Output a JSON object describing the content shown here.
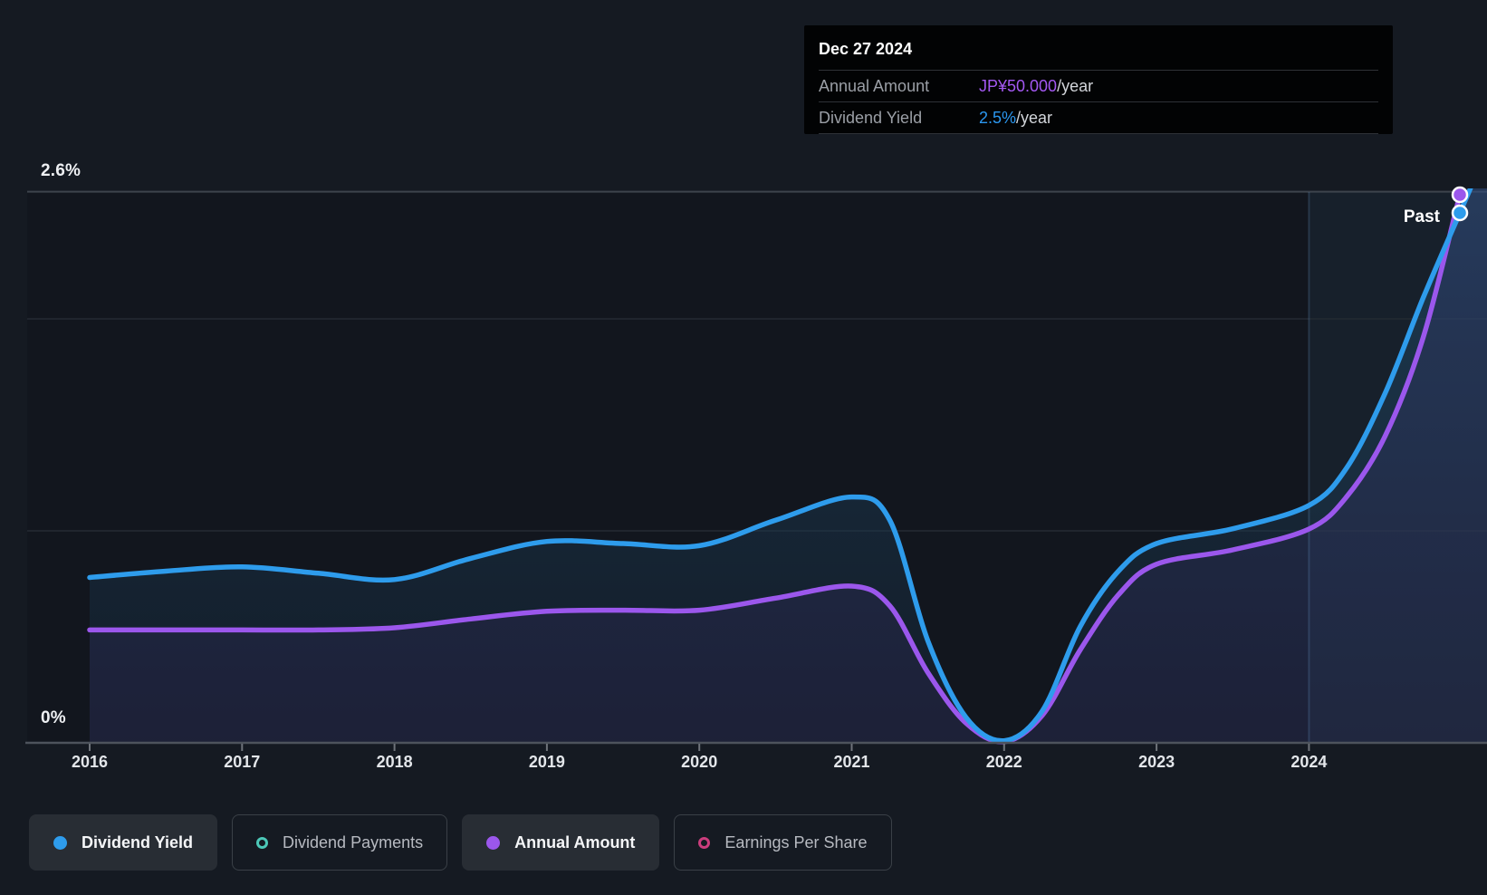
{
  "tooltip": {
    "date": "Dec 27 2024",
    "rows": [
      {
        "label": "Annual Amount",
        "value": "JP¥50.000",
        "suffix": "/year",
        "value_color": "#a358f2"
      },
      {
        "label": "Dividend Yield",
        "value": "2.5%",
        "suffix": "/year",
        "value_color": "#2b97f0"
      }
    ]
  },
  "axis": {
    "y_max_label": "2.6%",
    "y_min_label": "0%",
    "x_ticks": [
      "2016",
      "2017",
      "2018",
      "2019",
      "2020",
      "2021",
      "2022",
      "2023",
      "2024"
    ]
  },
  "annotations": {
    "past_label": "Past"
  },
  "legend": {
    "items": [
      {
        "label": "Dividend Yield",
        "color": "#2e9cec",
        "active": true,
        "marker": "filled"
      },
      {
        "label": "Dividend Payments",
        "color": "#4cc8b8",
        "active": false,
        "marker": "ring"
      },
      {
        "label": "Annual Amount",
        "color": "#9b57ec",
        "active": true,
        "marker": "filled"
      },
      {
        "label": "Earnings Per Share",
        "color": "#cb3d7d",
        "active": false,
        "marker": "ring"
      }
    ]
  },
  "chart_data": {
    "type": "line",
    "x_axis": {
      "range": [
        2016,
        2025
      ],
      "ticks": [
        2016,
        2017,
        2018,
        2019,
        2020,
        2021,
        2022,
        2023,
        2024
      ]
    },
    "y_axis": {
      "yield_range_pct": [
        0,
        2.6
      ],
      "gridlines_pct": [
        2.6,
        2.0,
        1.0
      ],
      "amount_range_jpy": [
        0,
        52
      ]
    },
    "series": [
      {
        "name": "Dividend Yield",
        "unit": "%",
        "color": "#2e9cec",
        "points": [
          [
            2016.0,
            0.78
          ],
          [
            2016.5,
            0.81
          ],
          [
            2017.0,
            0.83
          ],
          [
            2017.5,
            0.8
          ],
          [
            2018.0,
            0.77
          ],
          [
            2018.5,
            0.87
          ],
          [
            2019.0,
            0.95
          ],
          [
            2019.5,
            0.94
          ],
          [
            2020.0,
            0.93
          ],
          [
            2020.5,
            1.05
          ],
          [
            2021.0,
            1.16
          ],
          [
            2021.25,
            1.05
          ],
          [
            2021.5,
            0.48
          ],
          [
            2021.75,
            0.12
          ],
          [
            2022.0,
            0.01
          ],
          [
            2022.25,
            0.15
          ],
          [
            2022.5,
            0.55
          ],
          [
            2022.75,
            0.81
          ],
          [
            2023.0,
            0.94
          ],
          [
            2023.5,
            1.01
          ],
          [
            2024.0,
            1.12
          ],
          [
            2024.25,
            1.3
          ],
          [
            2024.5,
            1.65
          ],
          [
            2024.75,
            2.1
          ],
          [
            2024.99,
            2.5
          ]
        ]
      },
      {
        "name": "Annual Amount",
        "unit": "JP¥/year",
        "color": "#9b57ec",
        "points": [
          [
            2016.0,
            10.3
          ],
          [
            2016.5,
            10.3
          ],
          [
            2017.0,
            10.3
          ],
          [
            2017.5,
            10.3
          ],
          [
            2018.0,
            10.5
          ],
          [
            2018.5,
            11.3
          ],
          [
            2019.0,
            12.0
          ],
          [
            2019.5,
            12.1
          ],
          [
            2020.0,
            12.1
          ],
          [
            2020.5,
            13.2
          ],
          [
            2021.0,
            14.3
          ],
          [
            2021.25,
            12.5
          ],
          [
            2021.5,
            6.4
          ],
          [
            2021.75,
            1.8
          ],
          [
            2022.0,
            0.1
          ],
          [
            2022.25,
            2.5
          ],
          [
            2022.5,
            8.5
          ],
          [
            2022.75,
            13.5
          ],
          [
            2023.0,
            16.3
          ],
          [
            2023.5,
            17.6
          ],
          [
            2024.0,
            19.5
          ],
          [
            2024.25,
            22.5
          ],
          [
            2024.5,
            28.0
          ],
          [
            2024.75,
            37.0
          ],
          [
            2024.99,
            50.0
          ]
        ]
      }
    ],
    "end_markers": [
      {
        "series": "Annual Amount",
        "x": 2024.99,
        "value": 50.0
      },
      {
        "series": "Dividend Yield",
        "x": 2024.99,
        "value": 2.5
      }
    ],
    "past_region_start": 2024.0
  }
}
